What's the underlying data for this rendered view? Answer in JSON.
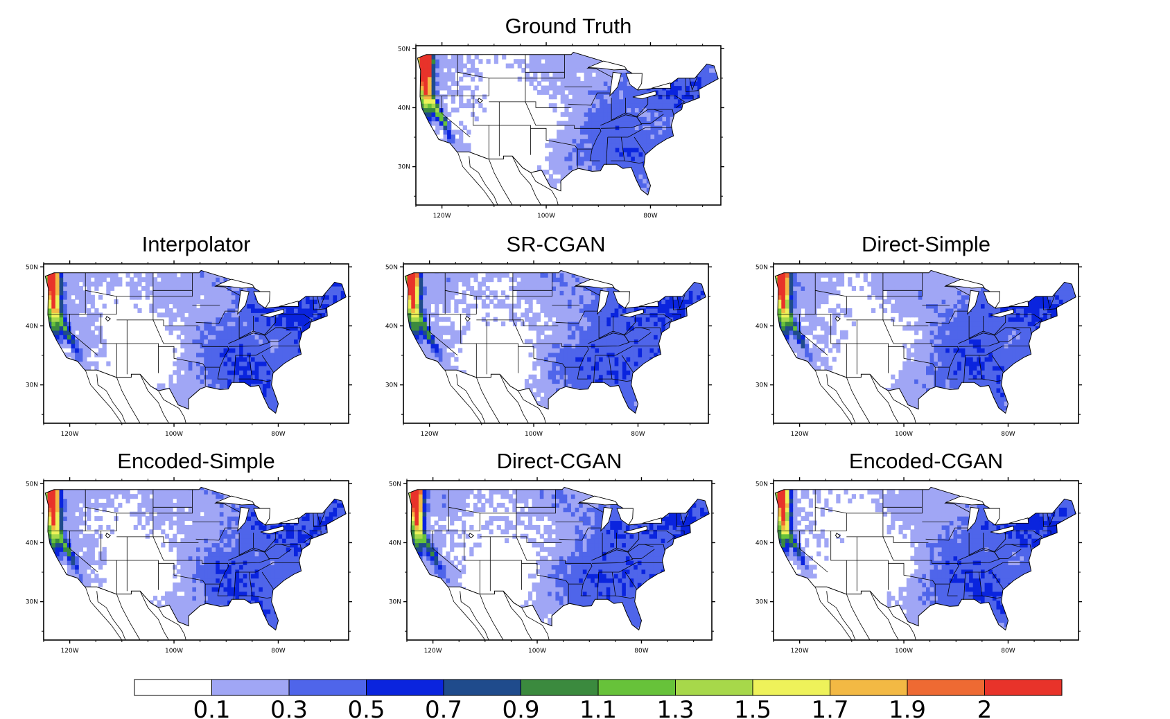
{
  "panels": [
    {
      "id": "ground-truth",
      "title": "Ground Truth",
      "variant": 0
    },
    {
      "id": "interpolator",
      "title": "Interpolator",
      "variant": 1
    },
    {
      "id": "sr-cgan",
      "title": "SR-CGAN",
      "variant": 2
    },
    {
      "id": "direct-simple",
      "title": "Direct-Simple",
      "variant": 3
    },
    {
      "id": "encoded-simple",
      "title": "Encoded-Simple",
      "variant": 4
    },
    {
      "id": "direct-cgan",
      "title": "Direct-CGAN",
      "variant": 5
    },
    {
      "id": "encoded-cgan",
      "title": "Encoded-CGAN",
      "variant": 6
    }
  ],
  "axes": {
    "lat_labels": [
      "50N",
      "40N",
      "30N"
    ],
    "lon_labels": [
      "120W",
      "100W",
      "80W"
    ]
  },
  "colorbar": {
    "colors": [
      "#ffffff",
      "#a0a6f5",
      "#4f65ea",
      "#0a24de",
      "#1f4b8c",
      "#3b8a3e",
      "#67c23a",
      "#a7d84a",
      "#eef25a",
      "#f3b944",
      "#ee6a33",
      "#e8332a"
    ],
    "labels": [
      "0.1",
      "0.3",
      "0.5",
      "0.7",
      "0.9",
      "1.1",
      "1.3",
      "1.5",
      "1.7",
      "1.9",
      "2"
    ]
  }
}
